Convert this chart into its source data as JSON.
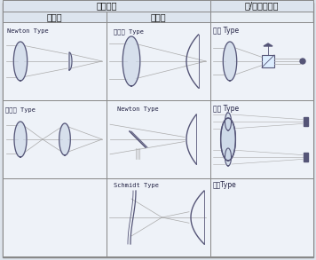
{
  "title": "鏡片單元",
  "col1_header": "折射系",
  "col2_header": "反射系",
  "col3_header": "送/收信單方法",
  "bg_color": "#e8eef4",
  "cell_bg": "#f0f4f8",
  "border_color": "#999999",
  "text_color": "#111111",
  "lens_color": "#555577",
  "ray_color": "#aaaaaa",
  "cells": [
    {
      "row": 0,
      "col": 0,
      "label": "Newton Type",
      "type": "newton_refract"
    },
    {
      "row": 0,
      "col": 1,
      "label": "伽俐略 Type",
      "type": "galileo_reflect"
    },
    {
      "row": 0,
      "col": 2,
      "label": "單眼 Type",
      "type": "single_eye"
    },
    {
      "row": 1,
      "col": 0,
      "label": "克蒲勒 Type",
      "type": "kepler_refract"
    },
    {
      "row": 1,
      "col": 1,
      "label": "Newton Type",
      "type": "newton_reflect"
    },
    {
      "row": 1,
      "col": 2,
      "label": "雙眼 Type",
      "type": "double_eye"
    },
    {
      "row": 2,
      "col": 0,
      "label": "",
      "type": "empty"
    },
    {
      "row": 2,
      "col": 1,
      "label": "Schmidt Type",
      "type": "schmidt"
    },
    {
      "row": 2,
      "col": 2,
      "label": "三眼Type",
      "type": "triple_eye"
    }
  ],
  "figsize": [
    3.56,
    2.93
  ],
  "dpi": 100
}
